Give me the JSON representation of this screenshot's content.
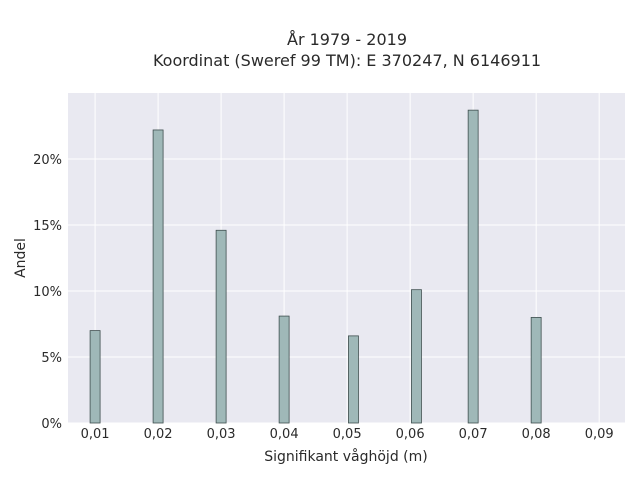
{
  "chart_data": {
    "type": "bar",
    "title": "År 1979 - 2019",
    "subtitle": "Koordinat (Sweref 99 TM): E 370247, N 6146911",
    "xlabel": "Signifikant våghöjd (m)",
    "ylabel": "Andel",
    "x_ticks": [
      "0,01",
      "0,02",
      "0,03",
      "0,04",
      "0,05",
      "0,06",
      "0,07",
      "0,08",
      "0,09"
    ],
    "x_tick_values": [
      0.01,
      0.02,
      0.03,
      0.04,
      0.05,
      0.06,
      0.07,
      0.08,
      0.09
    ],
    "y_ticks": [
      "0%",
      "5%",
      "10%",
      "15%",
      "20%"
    ],
    "y_tick_values": [
      0,
      5,
      10,
      15,
      20
    ],
    "xlim": [
      0.0057,
      0.0941
    ],
    "ylim": [
      0,
      25
    ],
    "x": [
      0.01,
      0.02,
      0.03,
      0.04,
      0.051,
      0.061,
      0.07,
      0.08
    ],
    "values": [
      7.0,
      22.2,
      14.6,
      8.1,
      6.6,
      10.1,
      23.7,
      8.0
    ],
    "grid": true,
    "colors": {
      "plot_background": "#e9e9f1",
      "grid": "#ffffff",
      "bar_fill": "#9fb8b8",
      "bar_stroke": "#3f4f4f"
    }
  }
}
